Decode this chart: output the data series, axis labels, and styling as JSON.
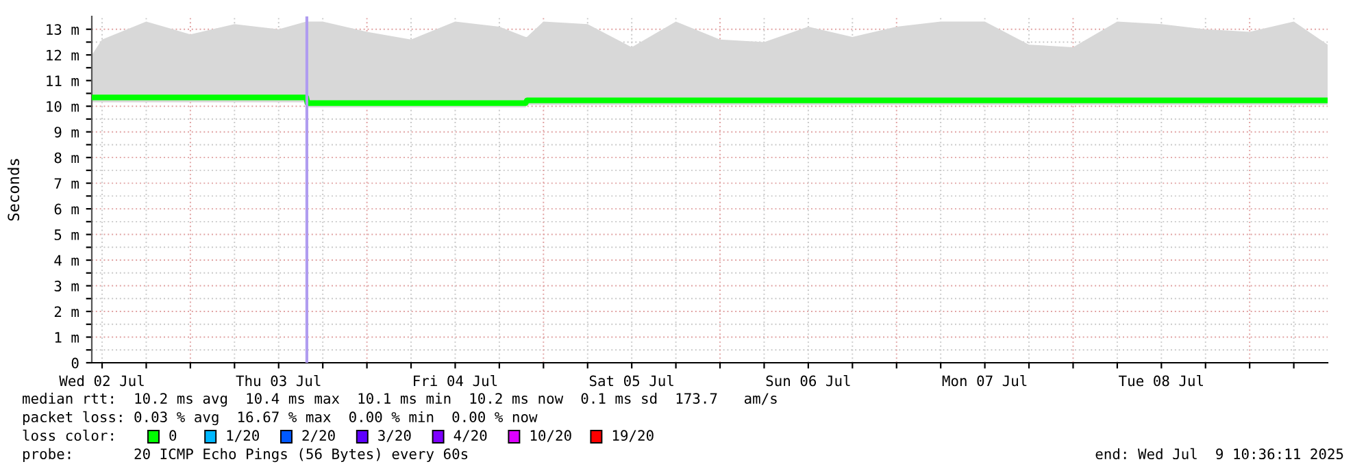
{
  "chart_data": {
    "type": "line",
    "ylabel": "Seconds",
    "legend_title": "loss color:",
    "legend": "bottom left",
    "grid": true,
    "x": [
      "2025-07-02T10:36",
      "2025-07-02T12:00",
      "2025-07-02T18:00",
      "2025-07-03T00:00",
      "2025-07-03T06:00",
      "2025-07-03T12:00",
      "2025-07-03T15:45",
      "2025-07-03T15:55",
      "2025-07-03T18:00",
      "2025-07-04T00:00",
      "2025-07-04T06:00",
      "2025-07-04T12:00",
      "2025-07-04T18:00",
      "2025-07-04T21:35",
      "2025-07-04T21:45",
      "2025-07-05T00:00",
      "2025-07-05T06:00",
      "2025-07-05T12:00",
      "2025-07-05T18:00",
      "2025-07-06T00:00",
      "2025-07-06T06:00",
      "2025-07-06T12:00",
      "2025-07-06T18:00",
      "2025-07-07T00:00",
      "2025-07-07T06:00",
      "2025-07-07T12:00",
      "2025-07-07T18:00",
      "2025-07-08T00:00",
      "2025-07-08T06:00",
      "2025-07-08T12:00",
      "2025-07-08T18:00",
      "2025-07-09T00:00",
      "2025-07-09T06:00",
      "2025-07-09T10:36"
    ],
    "xlim": [
      "2025-07-02T10:36",
      "2025-07-09T10:36"
    ],
    "xticks": [
      {
        "value": "2025-07-02T12:00",
        "label": "Wed 02 Jul"
      },
      {
        "value": "2025-07-02T18:00",
        "label": null
      },
      {
        "value": "2025-07-03T00:00",
        "label": null
      },
      {
        "value": "2025-07-03T06:00",
        "label": null
      },
      {
        "value": "2025-07-03T12:00",
        "label": "Thu 03 Jul"
      },
      {
        "value": "2025-07-03T18:00",
        "label": null
      },
      {
        "value": "2025-07-04T00:00",
        "label": null
      },
      {
        "value": "2025-07-04T06:00",
        "label": null
      },
      {
        "value": "2025-07-04T12:00",
        "label": "Fri 04 Jul"
      },
      {
        "value": "2025-07-04T18:00",
        "label": null
      },
      {
        "value": "2025-07-05T00:00",
        "label": null
      },
      {
        "value": "2025-07-05T06:00",
        "label": null
      },
      {
        "value": "2025-07-05T12:00",
        "label": "Sat 05 Jul"
      },
      {
        "value": "2025-07-05T18:00",
        "label": null
      },
      {
        "value": "2025-07-06T00:00",
        "label": null
      },
      {
        "value": "2025-07-06T06:00",
        "label": null
      },
      {
        "value": "2025-07-06T12:00",
        "label": "Sun 06 Jul"
      },
      {
        "value": "2025-07-06T18:00",
        "label": null
      },
      {
        "value": "2025-07-07T00:00",
        "label": null
      },
      {
        "value": "2025-07-07T06:00",
        "label": null
      },
      {
        "value": "2025-07-07T12:00",
        "label": "Mon 07 Jul"
      },
      {
        "value": "2025-07-07T18:00",
        "label": null
      },
      {
        "value": "2025-07-08T00:00",
        "label": null
      },
      {
        "value": "2025-07-08T06:00",
        "label": null
      },
      {
        "value": "2025-07-08T12:00",
        "label": "Tue 08 Jul"
      },
      {
        "value": "2025-07-08T18:00",
        "label": null
      },
      {
        "value": "2025-07-09T00:00",
        "label": null
      },
      {
        "value": "2025-07-09T06:00",
        "label": null
      }
    ],
    "ylim": [
      0,
      13.5
    ],
    "yticks": [
      0,
      {
        "value": 0.5,
        "label": null
      },
      {
        "value": 1,
        "label": "1 m"
      },
      {
        "value": 1.5,
        "label": null
      },
      {
        "value": 2,
        "label": "2 m"
      },
      {
        "value": 2.5,
        "label": null
      },
      {
        "value": 3,
        "label": "3 m"
      },
      {
        "value": 3.5,
        "label": null
      },
      {
        "value": 4,
        "label": "4 m"
      },
      {
        "value": 4.5,
        "label": null
      },
      {
        "value": 5,
        "label": "5 m"
      },
      {
        "value": 5.5,
        "label": null
      },
      {
        "value": 6,
        "label": "6 m"
      },
      {
        "value": 6.5,
        "label": null
      },
      {
        "value": 7,
        "label": "7 m"
      },
      {
        "value": 7.5,
        "label": null
      },
      {
        "value": 8,
        "label": "8 m"
      },
      {
        "value": 8.5,
        "label": null
      },
      {
        "value": 9,
        "label": "9 m"
      },
      {
        "value": 9.5,
        "label": null
      },
      {
        "value": 10,
        "label": "10 m"
      },
      {
        "value": 10.5,
        "label": null
      },
      {
        "value": 11,
        "label": "11 m"
      },
      {
        "value": 11.5,
        "label": null
      },
      {
        "value": 12,
        "label": "12 m"
      },
      {
        "value": 12.5,
        "label": null
      },
      {
        "value": 13,
        "label": "13 m"
      }
    ],
    "series": [
      {
        "name": "0",
        "color": "#00ff00",
        "values": [
          10.34,
          10.34,
          10.34,
          10.34,
          10.34,
          10.34,
          10.34,
          10.12,
          10.12,
          10.12,
          10.12,
          10.12,
          10.12,
          10.12,
          10.23,
          10.23,
          10.23,
          10.23,
          10.23,
          10.23,
          10.23,
          10.23,
          10.23,
          10.23,
          10.23,
          10.23,
          10.23,
          10.23,
          10.23,
          10.23,
          10.23,
          10.23,
          10.23,
          10.23
        ],
        "lower": [
          10.15,
          10.15,
          10.15,
          10.15,
          10.15,
          10.15,
          10.15,
          9.95,
          9.95,
          9.95,
          9.95,
          9.95,
          9.95,
          9.95,
          10.05,
          10.05,
          10.05,
          10.05,
          10.05,
          10.05,
          10.05,
          10.05,
          10.05,
          10.05,
          10.05,
          10.05,
          10.05,
          10.05,
          10.05,
          10.05,
          10.05,
          10.05,
          10.05,
          10.05
        ],
        "upper": [
          12.0,
          12.6,
          13.3,
          12.8,
          13.2,
          13.0,
          13.3,
          13.3,
          13.3,
          12.9,
          12.6,
          13.3,
          13.1,
          12.7,
          12.7,
          13.3,
          13.2,
          12.3,
          13.3,
          12.6,
          12.5,
          13.1,
          12.7,
          13.1,
          13.3,
          13.3,
          12.4,
          12.3,
          13.3,
          13.2,
          13.0,
          12.9,
          13.3,
          12.4
        ]
      },
      {
        "name": "1/20",
        "color": "#00b8ff",
        "values": [
          null,
          null,
          null,
          null,
          null,
          null,
          null,
          null,
          null,
          null,
          null,
          null,
          null,
          null,
          null,
          null,
          null,
          null,
          null,
          null,
          null,
          null,
          null,
          null,
          null,
          null,
          null,
          null,
          null,
          null,
          null,
          null,
          null,
          null
        ]
      },
      {
        "name": "2/20",
        "color": "#0059ff",
        "values": [
          null,
          null,
          null,
          null,
          null,
          null,
          null,
          null,
          null,
          null,
          null,
          null,
          null,
          null,
          null,
          null,
          null,
          null,
          null,
          null,
          null,
          null,
          null,
          null,
          null,
          null,
          null,
          null,
          null,
          null,
          null,
          null,
          null,
          null
        ]
      },
      {
        "name": "3/20",
        "color": "#5e00ff",
        "values": [
          null,
          null,
          null,
          null,
          null,
          null,
          null,
          null,
          null,
          null,
          null,
          null,
          null,
          null,
          null,
          null,
          null,
          null,
          null,
          null,
          null,
          null,
          null,
          null,
          null,
          null,
          null,
          null,
          null,
          null,
          null,
          null,
          null,
          null
        ]
      },
      {
        "name": "4/20",
        "color": "#7e00ff",
        "values": [
          null,
          null,
          null,
          null,
          null,
          null,
          null,
          null,
          null,
          null,
          null,
          null,
          null,
          null,
          null,
          null,
          null,
          null,
          null,
          null,
          null,
          null,
          null,
          null,
          null,
          null,
          null,
          null,
          null,
          null,
          null,
          null,
          null,
          null
        ]
      },
      {
        "name": "10/20",
        "color": "#dd00ff",
        "values": [
          null,
          null,
          null,
          null,
          null,
          null,
          null,
          null,
          null,
          null,
          null,
          null,
          null,
          null,
          null,
          null,
          null,
          null,
          null,
          null,
          null,
          null,
          null,
          null,
          null,
          null,
          null,
          null,
          null,
          null,
          null,
          null,
          null,
          null
        ]
      },
      {
        "name": "19/20",
        "color": "#ff0000",
        "values": [
          null,
          null,
          null,
          null,
          null,
          null,
          null,
          null,
          null,
          null,
          null,
          null,
          null,
          null,
          null,
          null,
          null,
          null,
          null,
          null,
          null,
          null,
          null,
          null,
          null,
          null,
          null,
          null,
          null,
          null,
          null,
          null,
          null,
          null
        ]
      }
    ],
    "ref_lines": [
      {
        "axis": "x",
        "value": "2025-07-03T15:50",
        "color": "#b09cf0"
      }
    ],
    "annotations": [
      "median rtt:  10.2 ms avg  10.4 ms max  10.1 ms min  10.2 ms now  0.1 ms sd  173.7   am/s",
      "packet loss: 0.03 % avg  16.67 % max  0.00 % min  0.00 % now",
      "probe:       20 ICMP Echo Pings (56 Bytes) every 60s",
      "end: Wed Jul  9 10:36:11 2025"
    ]
  }
}
